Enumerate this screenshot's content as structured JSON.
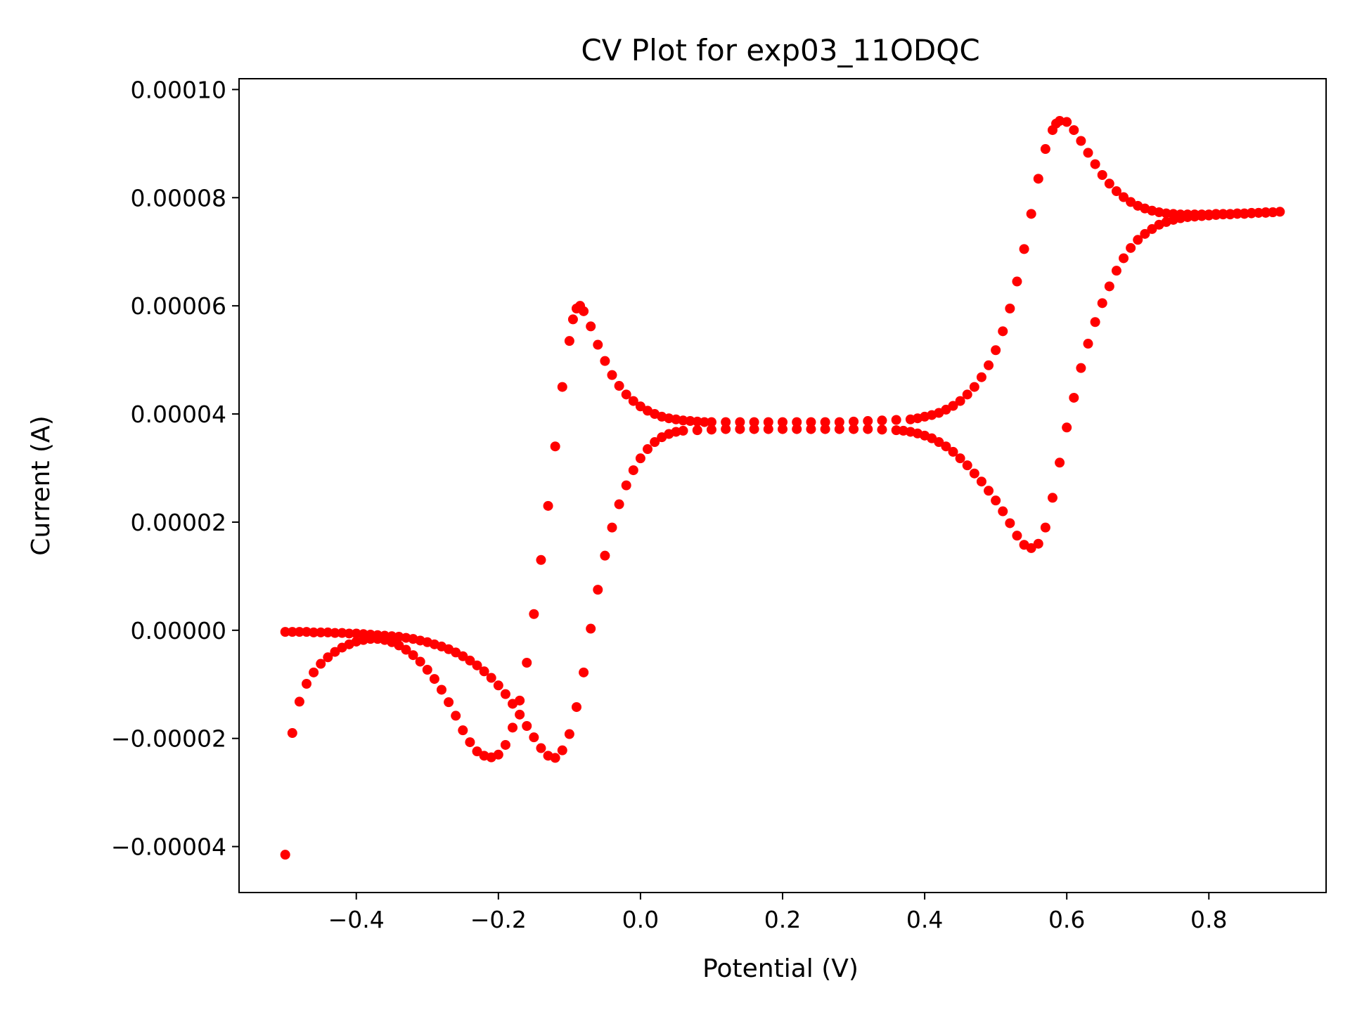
{
  "chart_data": {
    "type": "scatter",
    "title": "CV Plot for exp03_11ODQC",
    "xlabel": "Potential (V)",
    "ylabel": "Current (A)",
    "xlim": [
      -0.565,
      0.965
    ],
    "ylim": [
      -4.85e-05,
      0.000102
    ],
    "xticks": [
      -0.4,
      -0.2,
      0.0,
      0.2,
      0.4,
      0.6,
      0.8
    ],
    "xtick_labels": [
      "−0.4",
      "−0.2",
      "0.0",
      "0.2",
      "0.4",
      "0.6",
      "0.8"
    ],
    "yticks": [
      -4e-05,
      -2e-05,
      0.0,
      2e-05,
      4e-05,
      6e-05,
      8e-05,
      0.0001
    ],
    "ytick_labels": [
      "−0.00004",
      "−0.00002",
      "0.00000",
      "0.00002",
      "0.00004",
      "0.00006",
      "0.00008",
      "0.00010"
    ],
    "grid": false,
    "marker_color": "#ff0000",
    "series": [
      {
        "points": [
          [
            -0.5,
            -4.15e-05
          ],
          [
            -0.49,
            -1.9e-05
          ],
          [
            -0.48,
            -1.32e-05
          ],
          [
            -0.47,
            -9.9e-06
          ],
          [
            -0.46,
            -7.8e-06
          ],
          [
            -0.45,
            -6.2e-06
          ],
          [
            -0.44,
            -5e-06
          ],
          [
            -0.43,
            -4e-06
          ],
          [
            -0.42,
            -3.2e-06
          ],
          [
            -0.41,
            -2.6e-06
          ],
          [
            -0.4,
            -2.1e-06
          ],
          [
            -0.39,
            -1.8e-06
          ],
          [
            -0.38,
            -1.6e-06
          ],
          [
            -0.37,
            -1.6e-06
          ],
          [
            -0.36,
            -1.8e-06
          ],
          [
            -0.35,
            -2.2e-06
          ],
          [
            -0.34,
            -2.8e-06
          ],
          [
            -0.33,
            -3.6e-06
          ],
          [
            -0.32,
            -4.6e-06
          ],
          [
            -0.31,
            -5.8e-06
          ],
          [
            -0.3,
            -7.3e-06
          ],
          [
            -0.29,
            -9e-06
          ],
          [
            -0.28,
            -1.1e-05
          ],
          [
            -0.27,
            -1.33e-05
          ],
          [
            -0.26,
            -1.58e-05
          ],
          [
            -0.25,
            -1.85e-05
          ],
          [
            -0.24,
            -2.07e-05
          ],
          [
            -0.23,
            -2.24e-05
          ],
          [
            -0.22,
            -2.32e-05
          ],
          [
            -0.21,
            -2.35e-05
          ],
          [
            -0.2,
            -2.3e-05
          ],
          [
            -0.19,
            -2.12e-05
          ],
          [
            -0.18,
            -1.8e-05
          ],
          [
            -0.17,
            -1.3e-05
          ],
          [
            -0.16,
            -6e-06
          ],
          [
            -0.15,
            3e-06
          ],
          [
            -0.14,
            1.3e-05
          ],
          [
            -0.13,
            2.3e-05
          ],
          [
            -0.12,
            3.4e-05
          ],
          [
            -0.11,
            4.5e-05
          ],
          [
            -0.1,
            5.35e-05
          ],
          [
            -0.095,
            5.75e-05
          ],
          [
            -0.09,
            5.95e-05
          ],
          [
            -0.085,
            6e-05
          ],
          [
            -0.08,
            5.9e-05
          ],
          [
            -0.07,
            5.62e-05
          ],
          [
            -0.06,
            5.28e-05
          ],
          [
            -0.05,
            4.98e-05
          ],
          [
            -0.04,
            4.72e-05
          ],
          [
            -0.03,
            4.52e-05
          ],
          [
            -0.02,
            4.36e-05
          ],
          [
            -0.01,
            4.24e-05
          ],
          [
            0.0,
            4.14e-05
          ],
          [
            0.01,
            4.06e-05
          ],
          [
            0.02,
            4e-05
          ],
          [
            0.03,
            3.95e-05
          ],
          [
            0.04,
            3.92e-05
          ],
          [
            0.05,
            3.9e-05
          ],
          [
            0.06,
            3.88e-05
          ],
          [
            0.07,
            3.87e-05
          ],
          [
            0.08,
            3.86e-05
          ],
          [
            0.09,
            3.85e-05
          ],
          [
            0.1,
            3.85e-05
          ],
          [
            0.12,
            3.85e-05
          ],
          [
            0.14,
            3.85e-05
          ],
          [
            0.16,
            3.85e-05
          ],
          [
            0.18,
            3.85e-05
          ],
          [
            0.2,
            3.85e-05
          ],
          [
            0.22,
            3.85e-05
          ],
          [
            0.24,
            3.85e-05
          ],
          [
            0.26,
            3.85e-05
          ],
          [
            0.28,
            3.85e-05
          ],
          [
            0.3,
            3.86e-05
          ],
          [
            0.32,
            3.87e-05
          ],
          [
            0.34,
            3.88e-05
          ],
          [
            0.36,
            3.89e-05
          ],
          [
            0.38,
            3.9e-05
          ],
          [
            0.39,
            3.92e-05
          ],
          [
            0.4,
            3.95e-05
          ],
          [
            0.41,
            3.98e-05
          ],
          [
            0.42,
            4.02e-05
          ],
          [
            0.43,
            4.08e-05
          ],
          [
            0.44,
            4.15e-05
          ],
          [
            0.45,
            4.24e-05
          ],
          [
            0.46,
            4.36e-05
          ],
          [
            0.47,
            4.5e-05
          ],
          [
            0.48,
            4.68e-05
          ],
          [
            0.49,
            4.9e-05
          ],
          [
            0.5,
            5.18e-05
          ],
          [
            0.51,
            5.53e-05
          ],
          [
            0.52,
            5.95e-05
          ],
          [
            0.53,
            6.45e-05
          ],
          [
            0.54,
            7.05e-05
          ],
          [
            0.55,
            7.7e-05
          ],
          [
            0.56,
            8.35e-05
          ],
          [
            0.57,
            8.9e-05
          ],
          [
            0.58,
            9.25e-05
          ],
          [
            0.585,
            9.37e-05
          ],
          [
            0.59,
            9.42e-05
          ],
          [
            0.6,
            9.4e-05
          ],
          [
            0.61,
            9.25e-05
          ],
          [
            0.62,
            9.05e-05
          ],
          [
            0.63,
            8.83e-05
          ],
          [
            0.64,
            8.62e-05
          ],
          [
            0.65,
            8.42e-05
          ],
          [
            0.66,
            8.26e-05
          ],
          [
            0.67,
            8.12e-05
          ],
          [
            0.68,
            8.01e-05
          ],
          [
            0.69,
            7.92e-05
          ],
          [
            0.7,
            7.85e-05
          ],
          [
            0.71,
            7.8e-05
          ],
          [
            0.72,
            7.76e-05
          ],
          [
            0.73,
            7.73e-05
          ],
          [
            0.74,
            7.71e-05
          ],
          [
            0.75,
            7.7e-05
          ],
          [
            0.76,
            7.69e-05
          ],
          [
            0.77,
            7.69e-05
          ],
          [
            0.78,
            7.69e-05
          ],
          [
            0.79,
            7.69e-05
          ],
          [
            0.8,
            7.69e-05
          ],
          [
            0.81,
            7.7e-05
          ],
          [
            0.82,
            7.7e-05
          ],
          [
            0.83,
            7.7e-05
          ],
          [
            0.84,
            7.71e-05
          ],
          [
            0.85,
            7.71e-05
          ],
          [
            0.86,
            7.72e-05
          ],
          [
            0.87,
            7.72e-05
          ],
          [
            0.88,
            7.73e-05
          ],
          [
            0.89,
            7.73e-05
          ],
          [
            0.9,
            7.74e-05
          ],
          [
            0.89,
            7.73e-05
          ],
          [
            0.88,
            7.72e-05
          ],
          [
            0.87,
            7.72e-05
          ],
          [
            0.86,
            7.71e-05
          ],
          [
            0.85,
            7.7e-05
          ],
          [
            0.84,
            7.7e-05
          ],
          [
            0.83,
            7.69e-05
          ],
          [
            0.82,
            7.69e-05
          ],
          [
            0.81,
            7.68e-05
          ],
          [
            0.8,
            7.67e-05
          ],
          [
            0.79,
            7.66e-05
          ],
          [
            0.78,
            7.65e-05
          ],
          [
            0.77,
            7.64e-05
          ],
          [
            0.76,
            7.62e-05
          ],
          [
            0.75,
            7.59e-05
          ],
          [
            0.74,
            7.55e-05
          ],
          [
            0.73,
            7.5e-05
          ],
          [
            0.72,
            7.42e-05
          ],
          [
            0.71,
            7.33e-05
          ],
          [
            0.7,
            7.22e-05
          ],
          [
            0.69,
            7.07e-05
          ],
          [
            0.68,
            6.88e-05
          ],
          [
            0.67,
            6.65e-05
          ],
          [
            0.66,
            6.36e-05
          ],
          [
            0.65,
            6.05e-05
          ],
          [
            0.64,
            5.7e-05
          ],
          [
            0.63,
            5.3e-05
          ],
          [
            0.62,
            4.85e-05
          ],
          [
            0.61,
            4.3e-05
          ],
          [
            0.6,
            3.75e-05
          ],
          [
            0.59,
            3.1e-05
          ],
          [
            0.58,
            2.45e-05
          ],
          [
            0.57,
            1.9e-05
          ],
          [
            0.56,
            1.6e-05
          ],
          [
            0.55,
            1.52e-05
          ],
          [
            0.54,
            1.58e-05
          ],
          [
            0.53,
            1.75e-05
          ],
          [
            0.52,
            1.98e-05
          ],
          [
            0.51,
            2.2e-05
          ],
          [
            0.5,
            2.4e-05
          ],
          [
            0.49,
            2.58e-05
          ],
          [
            0.48,
            2.75e-05
          ],
          [
            0.47,
            2.9e-05
          ],
          [
            0.46,
            3.05e-05
          ],
          [
            0.45,
            3.18e-05
          ],
          [
            0.44,
            3.3e-05
          ],
          [
            0.43,
            3.4e-05
          ],
          [
            0.42,
            3.48e-05
          ],
          [
            0.41,
            3.55e-05
          ],
          [
            0.4,
            3.6e-05
          ],
          [
            0.39,
            3.64e-05
          ],
          [
            0.38,
            3.67e-05
          ],
          [
            0.37,
            3.69e-05
          ],
          [
            0.36,
            3.7e-05
          ],
          [
            0.34,
            3.71e-05
          ],
          [
            0.32,
            3.72e-05
          ],
          [
            0.3,
            3.72e-05
          ],
          [
            0.28,
            3.72e-05
          ],
          [
            0.26,
            3.72e-05
          ],
          [
            0.24,
            3.72e-05
          ],
          [
            0.22,
            3.72e-05
          ],
          [
            0.2,
            3.72e-05
          ],
          [
            0.18,
            3.72e-05
          ],
          [
            0.16,
            3.72e-05
          ],
          [
            0.14,
            3.72e-05
          ],
          [
            0.12,
            3.72e-05
          ],
          [
            0.1,
            3.71e-05
          ],
          [
            0.08,
            3.7e-05
          ],
          [
            0.06,
            3.69e-05
          ],
          [
            0.05,
            3.67e-05
          ],
          [
            0.04,
            3.63e-05
          ],
          [
            0.03,
            3.57e-05
          ],
          [
            0.02,
            3.48e-05
          ],
          [
            0.01,
            3.35e-05
          ],
          [
            0.0,
            3.18e-05
          ],
          [
            -0.01,
            2.96e-05
          ],
          [
            -0.02,
            2.68e-05
          ],
          [
            -0.03,
            2.33e-05
          ],
          [
            -0.04,
            1.9e-05
          ],
          [
            -0.05,
            1.38e-05
          ],
          [
            -0.06,
            7.5e-06
          ],
          [
            -0.07,
            3e-07
          ],
          [
            -0.08,
            -7.8e-06
          ],
          [
            -0.09,
            -1.42e-05
          ],
          [
            -0.1,
            -1.92e-05
          ],
          [
            -0.11,
            -2.22e-05
          ],
          [
            -0.12,
            -2.36e-05
          ],
          [
            -0.13,
            -2.32e-05
          ],
          [
            -0.14,
            -2.18e-05
          ],
          [
            -0.15,
            -1.98e-05
          ],
          [
            -0.16,
            -1.77e-05
          ],
          [
            -0.17,
            -1.56e-05
          ],
          [
            -0.18,
            -1.36e-05
          ],
          [
            -0.19,
            -1.18e-05
          ],
          [
            -0.2,
            -1.02e-05
          ],
          [
            -0.21,
            -8.8e-06
          ],
          [
            -0.22,
            -7.6e-06
          ],
          [
            -0.23,
            -6.5e-06
          ],
          [
            -0.24,
            -5.6e-06
          ],
          [
            -0.25,
            -4.8e-06
          ],
          [
            -0.26,
            -4.1e-06
          ],
          [
            -0.27,
            -3.5e-06
          ],
          [
            -0.28,
            -3e-06
          ],
          [
            -0.29,
            -2.6e-06
          ],
          [
            -0.3,
            -2.2e-06
          ],
          [
            -0.31,
            -1.9e-06
          ],
          [
            -0.32,
            -1.6e-06
          ],
          [
            -0.33,
            -1.4e-06
          ],
          [
            -0.34,
            -1.2e-06
          ],
          [
            -0.35,
            -1.1e-06
          ],
          [
            -0.36,
            -1e-06
          ],
          [
            -0.37,
            -9e-07
          ],
          [
            -0.38,
            -8e-07
          ],
          [
            -0.39,
            -7e-07
          ],
          [
            -0.4,
            -6e-07
          ],
          [
            -0.41,
            -6e-07
          ],
          [
            -0.42,
            -5e-07
          ],
          [
            -0.43,
            -5e-07
          ],
          [
            -0.44,
            -4e-07
          ],
          [
            -0.45,
            -4e-07
          ],
          [
            -0.46,
            -4e-07
          ],
          [
            -0.47,
            -3e-07
          ],
          [
            -0.48,
            -3e-07
          ],
          [
            -0.49,
            -3e-07
          ],
          [
            -0.5,
            -3e-07
          ]
        ]
      }
    ]
  }
}
